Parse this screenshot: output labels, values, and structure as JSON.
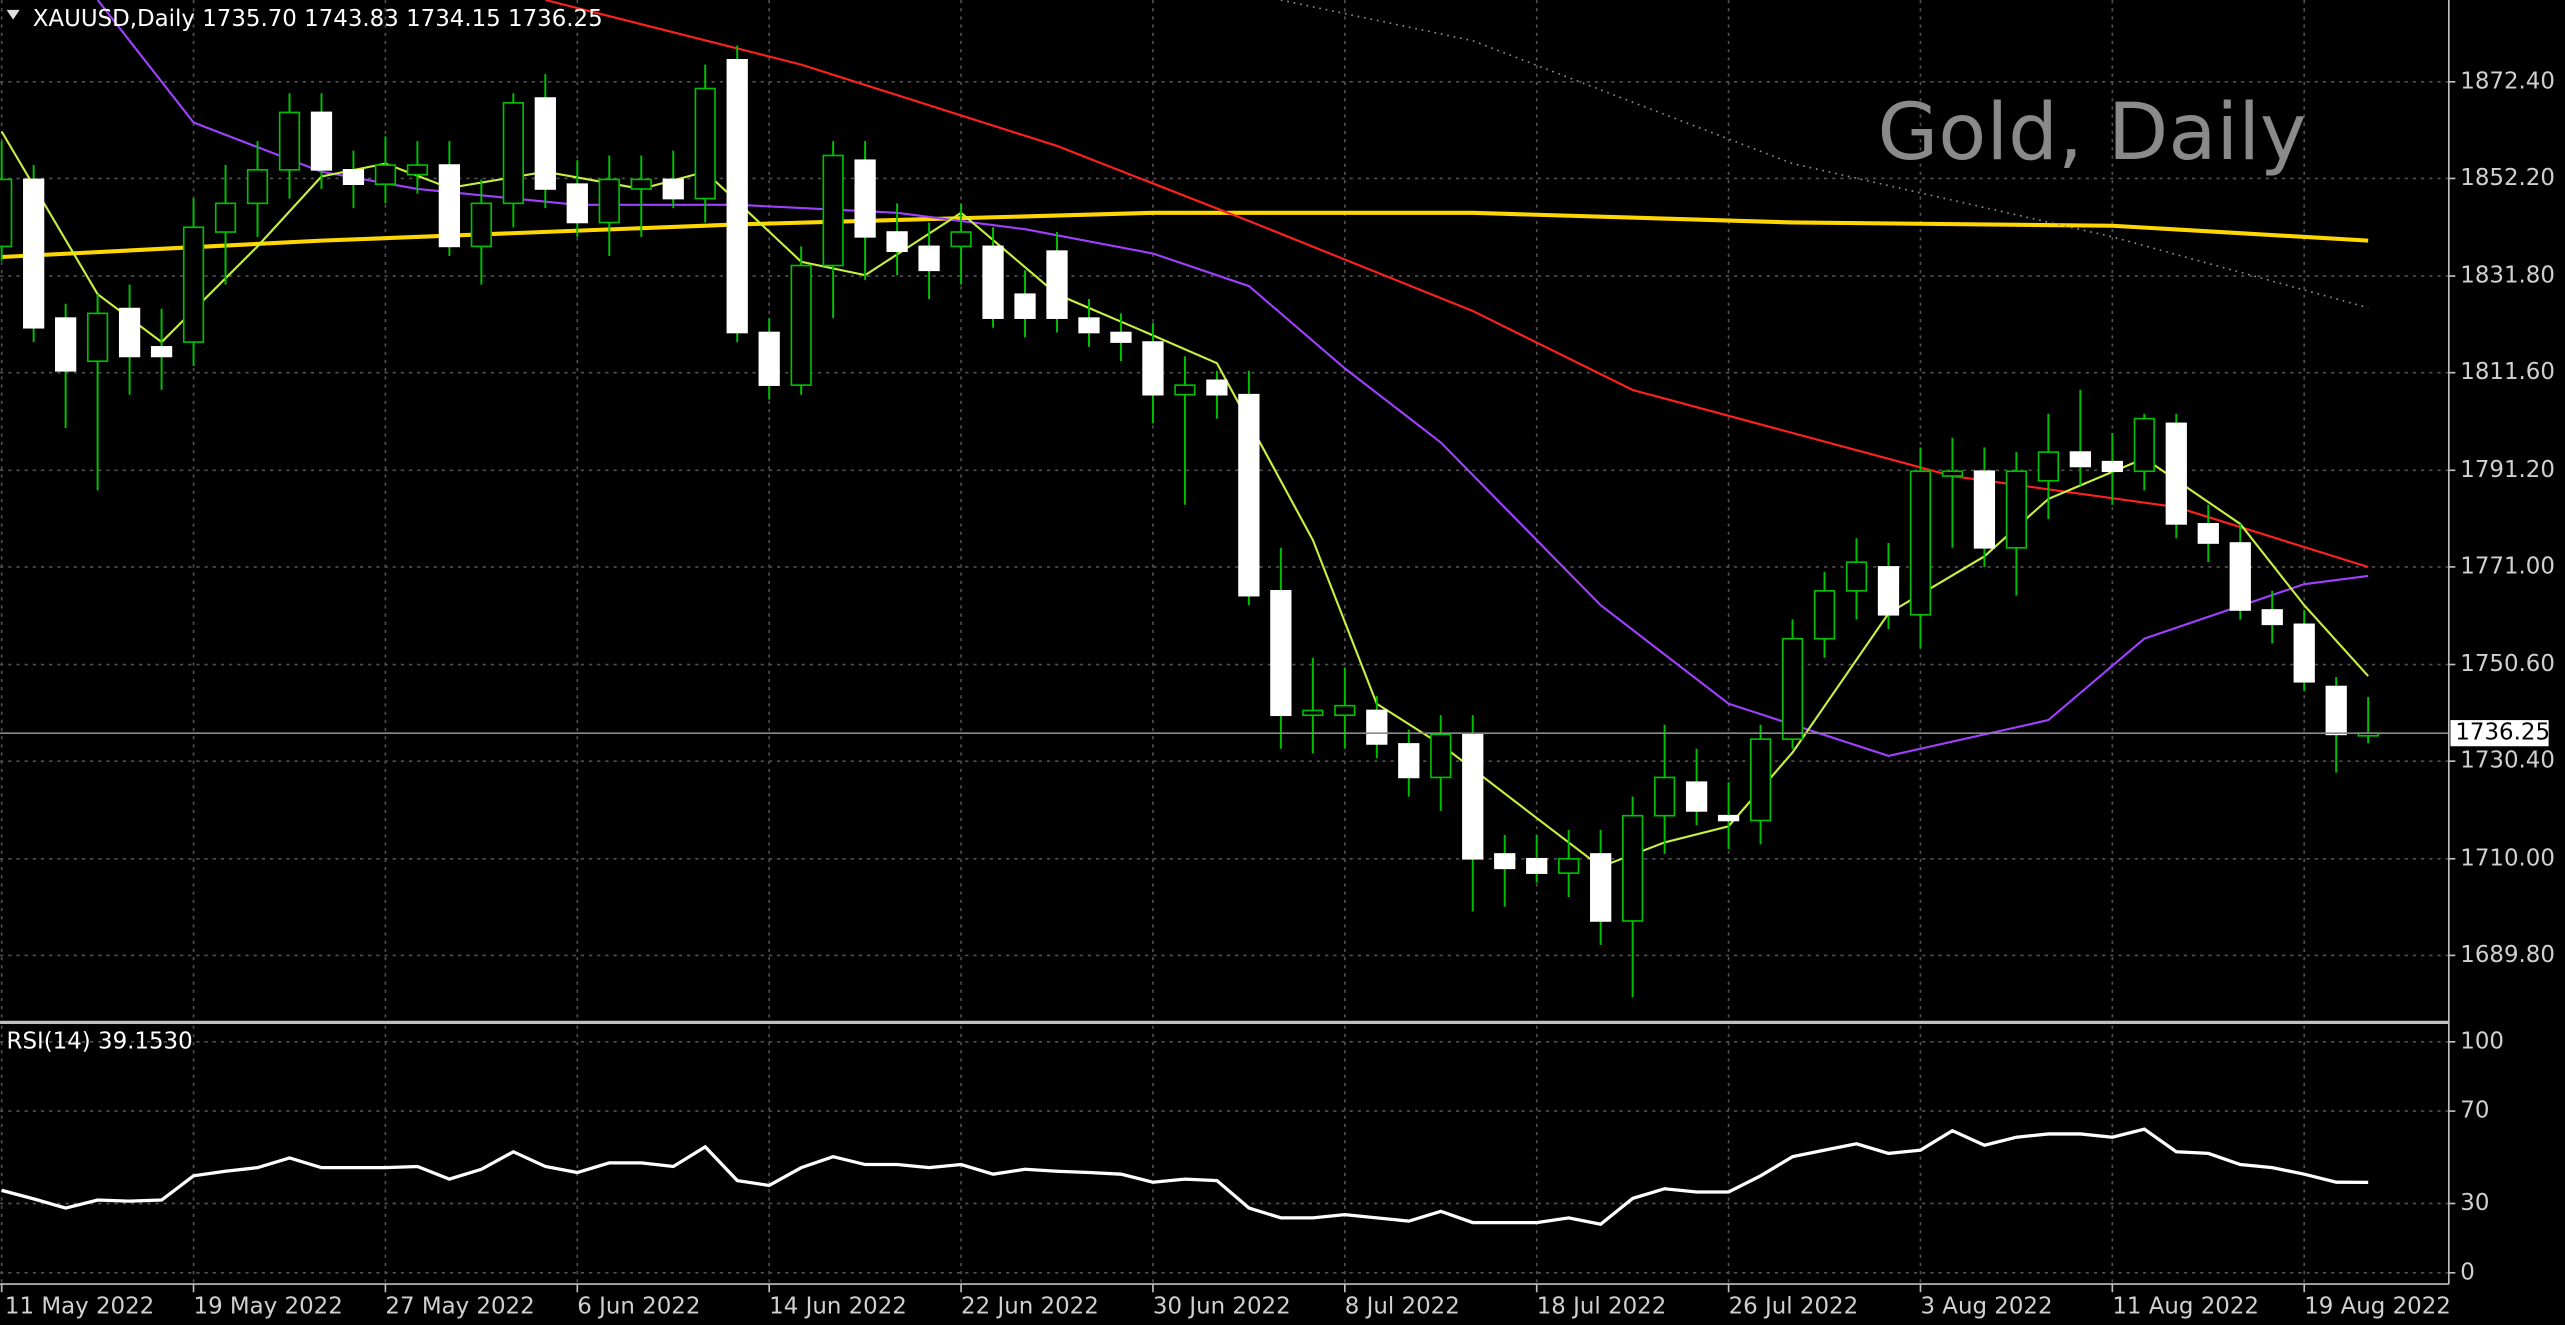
{
  "chart_data": [
    {
      "type": "candlestick",
      "title": "XAUUSD,Daily  1735.70 1743.83 1734.15 1736.25",
      "watermark": "Gold, Daily",
      "categories": [
        "11 May 2022",
        null,
        null,
        null,
        null,
        null,
        "19 May 2022",
        null,
        null,
        null,
        null,
        null,
        "27 May 2022",
        null,
        null,
        null,
        null,
        null,
        "6 Jun 2022",
        null,
        null,
        null,
        null,
        null,
        "14 Jun 2022",
        null,
        null,
        null,
        null,
        null,
        "22 Jun 2022",
        null,
        null,
        null,
        null,
        null,
        "30 Jun 2022",
        null,
        null,
        null,
        null,
        null,
        "8 Jul 2022",
        null,
        null,
        null,
        null,
        null,
        "18 Jul 2022",
        null,
        null,
        null,
        null,
        null,
        "26 Jul 2022",
        null,
        null,
        null,
        null,
        null,
        "3 Aug 2022",
        null,
        null,
        null,
        null,
        null,
        "11 Aug 2022",
        null,
        null,
        null,
        null,
        null,
        "19 Aug 2022",
        null,
        null
      ],
      "open": [
        1838,
        1852,
        1823,
        1814,
        1825,
        1817,
        1818,
        1841,
        1847,
        1854,
        1866,
        1854,
        1851,
        1853,
        1855,
        1838,
        1847,
        1869,
        1851,
        1843,
        1850,
        1852,
        1848,
        1877,
        1820,
        1809,
        1834,
        1856,
        1841,
        1838,
        1838,
        1838,
        1828,
        1837,
        1823,
        1820,
        1818,
        1807,
        1810,
        1807,
        1766,
        1740,
        1740,
        1741,
        1734,
        1727,
        1736,
        1711,
        1710,
        1707,
        1711,
        1697,
        1719,
        1726,
        1719,
        1718,
        1735,
        1756,
        1766,
        1771,
        1761,
        1790,
        1791,
        1775,
        1789,
        1795,
        1793,
        1791,
        1801,
        1780,
        1776,
        1762,
        1759,
        1746,
        1735.7
      ],
      "high": [
        1860,
        1855,
        1826,
        1828,
        1830,
        1825,
        1848,
        1855,
        1860,
        1870,
        1870,
        1858,
        1861,
        1860,
        1860,
        1852,
        1870,
        1874,
        1856,
        1857,
        1857,
        1858,
        1876,
        1880,
        1823,
        1838,
        1860,
        1860,
        1847,
        1843,
        1847,
        1842,
        1833,
        1841,
        1827,
        1824,
        1822,
        1815,
        1812,
        1812,
        1775,
        1752,
        1750,
        1744,
        1737,
        1740,
        1740,
        1715,
        1715,
        1716,
        1716,
        1723,
        1738,
        1733,
        1726,
        1738,
        1760,
        1770,
        1777,
        1776,
        1796,
        1798,
        1796,
        1795,
        1803,
        1808,
        1799,
        1803,
        1803,
        1784,
        1780,
        1766,
        1762,
        1748,
        1743.83
      ],
      "low": [
        1835,
        1818,
        1800,
        1787,
        1807,
        1808,
        1813,
        1830,
        1840,
        1848,
        1850,
        1846,
        1847,
        1849,
        1836,
        1830,
        1842,
        1846,
        1840,
        1836,
        1840,
        1846,
        1843,
        1818,
        1806,
        1807,
        1823,
        1831,
        1832,
        1827,
        1830,
        1821,
        1819,
        1820,
        1817,
        1814,
        1801,
        1784,
        1802,
        1763,
        1733,
        1732,
        1733,
        1731,
        1723,
        1720,
        1699,
        1700,
        1705,
        1702,
        1692,
        1681,
        1711,
        1717,
        1712,
        1713,
        1733,
        1752,
        1760,
        1758,
        1754,
        1775,
        1771,
        1765,
        1781,
        1788,
        1784,
        1787,
        1777,
        1772,
        1760,
        1755,
        1745,
        1728,
        1734.15
      ],
      "close": [
        1852,
        1821,
        1812,
        1824,
        1815,
        1815,
        1842,
        1847,
        1854,
        1866,
        1854,
        1851,
        1855,
        1855,
        1838,
        1847,
        1868,
        1850,
        1843,
        1852,
        1852,
        1848,
        1871,
        1820,
        1809,
        1834,
        1857,
        1840,
        1837,
        1833,
        1841,
        1823,
        1823,
        1823,
        1820,
        1818,
        1807,
        1809,
        1807,
        1765,
        1740,
        1741,
        1742,
        1734,
        1727,
        1736,
        1710,
        1708,
        1707,
        1710,
        1697,
        1719,
        1727,
        1720,
        1718,
        1735,
        1756,
        1766,
        1772,
        1761,
        1791,
        1791,
        1775,
        1791,
        1795,
        1792,
        1791,
        1802,
        1780,
        1776,
        1762,
        1759,
        1747,
        1736,
        1736.25
      ],
      "series": [
        {
          "color": "#ffd700",
          "x": [
            0,
            10,
            23,
            36,
            46,
            56,
            66,
            74
          ],
          "values": [
            1835.8,
            1839.2,
            1842.6,
            1845,
            1845,
            1843,
            1842.3,
            1839.2
          ]
        },
        {
          "color": "#ff2020",
          "x": [
            17,
            25,
            33,
            39,
            46,
            51,
            56,
            61,
            68,
            74
          ],
          "values": [
            1889.5,
            1876,
            1859,
            1843.3,
            1824.5,
            1808,
            1799,
            1790,
            1783.5,
            1771
          ]
        },
        {
          "color": "#a040ff",
          "x": [
            3,
            6,
            10,
            13,
            18,
            23,
            28,
            32,
            36,
            39,
            42,
            45,
            50,
            54,
            59,
            64,
            67,
            72,
            74
          ],
          "values": [
            1889.5,
            1863.9,
            1853.6,
            1850,
            1846.7,
            1846.7,
            1845,
            1841.6,
            1836.5,
            1829.7,
            1812.5,
            1797,
            1763,
            1742.4,
            1731.5,
            1739,
            1756,
            1767.4,
            1769.1
          ]
        },
        {
          "color": "#c8f040",
          "x": [
            0,
            3,
            5,
            8,
            10,
            12,
            14,
            17,
            20,
            22,
            25,
            27,
            30,
            33,
            36,
            38,
            41,
            43,
            45,
            48,
            50,
            52,
            54,
            56,
            59,
            62,
            64,
            67,
            70,
            72,
            74
          ],
          "values": [
            1862,
            1828,
            1818,
            1838,
            1852.6,
            1855.3,
            1850.2,
            1853.6,
            1850,
            1853.6,
            1834.8,
            1832,
            1845,
            1828,
            1819.4,
            1813.6,
            1776.6,
            1742.4,
            1733.9,
            1718.5,
            1708.3,
            1713.4,
            1716.8,
            1732.2,
            1761.3,
            1773.2,
            1785.2,
            1793.7,
            1780,
            1763,
            1748.2
          ]
        },
        {
          "color": "#909090",
          "style": "dotted",
          "x": [
            40,
            46,
            56,
            66,
            74
          ],
          "values": [
            1889.5,
            1881,
            1855.3,
            1840,
            1825.2
          ]
        }
      ],
      "last_price": 1736.25,
      "ylim": [
        1675.8,
        1889.5
      ],
      "yticks": [
        {
          "value": 1689.8,
          "label": "1689.80"
        },
        {
          "value": 1710,
          "label": "1710.00"
        },
        {
          "value": 1730.4,
          "label": "1730.40"
        },
        {
          "value": 1750.6,
          "label": "1750.60"
        },
        {
          "value": 1771,
          "label": "1771.00"
        },
        {
          "value": 1791.2,
          "label": "1791.20"
        },
        {
          "value": 1811.6,
          "label": "1811.60"
        },
        {
          "value": 1831.8,
          "label": "1831.80"
        },
        {
          "value": 1852.2,
          "label": "1852.20"
        },
        {
          "value": 1872.4,
          "label": "1872.40"
        }
      ],
      "grid": true,
      "bull_color": "#000000",
      "bear_color": "#ffffff",
      "wick_color": "#00c000"
    },
    {
      "type": "line",
      "title": "RSI(14) 39.1530",
      "color": "#ffffff",
      "values": [
        35.7,
        32,
        28,
        31.5,
        31,
        31.5,
        42,
        44,
        45.5,
        49.7,
        45.5,
        45.5,
        45.5,
        46,
        40.6,
        44.8,
        52.4,
        46,
        43.4,
        47.6,
        47.6,
        46,
        54.5,
        39.9,
        37.8,
        45.5,
        50.3,
        46.9,
        46.9,
        45.5,
        46.9,
        42.7,
        44.8,
        44,
        43.4,
        42.7,
        39.2,
        40.6,
        39.9,
        28,
        23.8,
        23.8,
        25.2,
        23.8,
        22.4,
        26.6,
        21.7,
        21.7,
        21.7,
        23.8,
        21,
        32.2,
        36.4,
        35,
        35,
        42,
        50.3,
        53.1,
        55.9,
        51.7,
        53.1,
        61.5,
        55.2,
        58.7,
        60.1,
        60.1,
        58.7,
        62.2,
        52.4,
        51.7,
        46.9,
        45.5,
        42.7,
        39.2,
        39.153
      ],
      "ylim": [
        -4.9,
        107
      ],
      "yticks": [
        0,
        30,
        70,
        100
      ],
      "grid": true
    }
  ]
}
